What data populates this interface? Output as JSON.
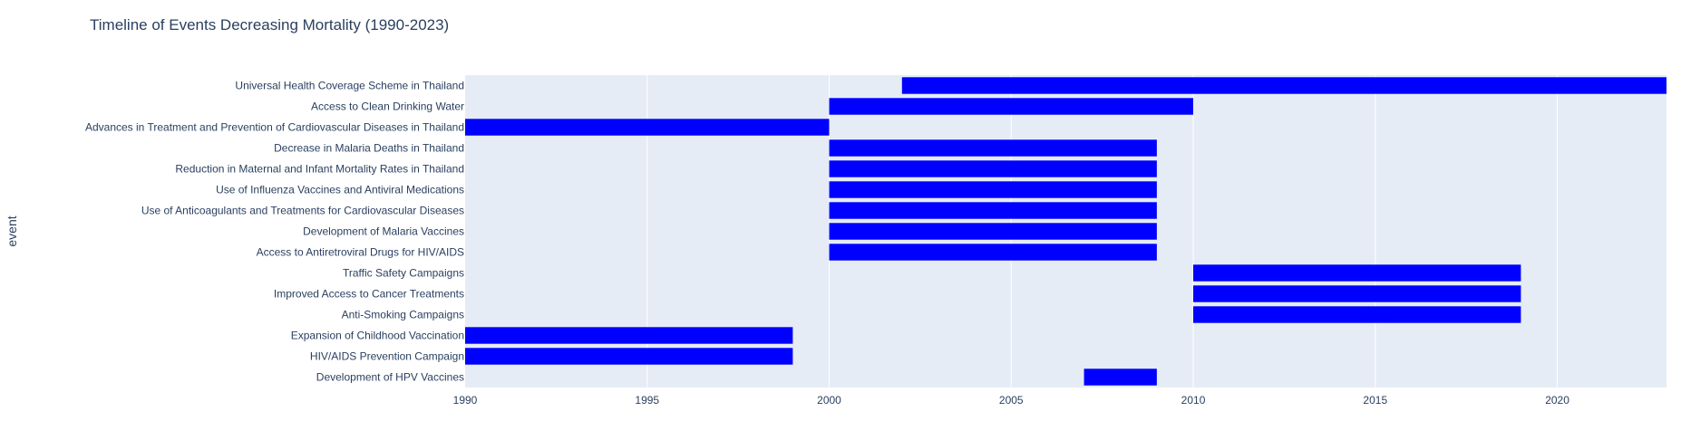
{
  "chart_data": {
    "type": "bar",
    "orientation": "horizontal-timeline",
    "title": "Timeline of Events Decreasing Mortality (1990-2023)",
    "xlabel": "",
    "ylabel": "event",
    "xlim": [
      1990,
      2023
    ],
    "xticks": [
      1990,
      1995,
      2000,
      2005,
      2010,
      2015,
      2020
    ],
    "grid": true,
    "bar_color": "#0000ff",
    "plot_background": "#e5ecf6",
    "events": [
      {
        "label": "Universal Health Coverage Scheme in Thailand",
        "start": 2002,
        "end": 2023
      },
      {
        "label": "Access to Clean Drinking Water",
        "start": 2000,
        "end": 2010
      },
      {
        "label": "Advances in Treatment and Prevention of Cardiovascular Diseases in Thailand",
        "start": 1990,
        "end": 2000
      },
      {
        "label": "Decrease in Malaria Deaths in Thailand",
        "start": 2000,
        "end": 2009
      },
      {
        "label": "Reduction in Maternal and Infant Mortality Rates in Thailand",
        "start": 2000,
        "end": 2009
      },
      {
        "label": "Use of Influenza Vaccines and Antiviral Medications",
        "start": 2000,
        "end": 2009
      },
      {
        "label": "Use of Anticoagulants and Treatments for Cardiovascular Diseases",
        "start": 2000,
        "end": 2009
      },
      {
        "label": "Development of Malaria Vaccines",
        "start": 2000,
        "end": 2009
      },
      {
        "label": "Access to Antiretroviral Drugs for HIV/AIDS",
        "start": 2000,
        "end": 2009
      },
      {
        "label": "Traffic Safety Campaigns",
        "start": 2010,
        "end": 2019
      },
      {
        "label": "Improved Access to Cancer Treatments",
        "start": 2010,
        "end": 2019
      },
      {
        "label": "Anti-Smoking Campaigns",
        "start": 2010,
        "end": 2019
      },
      {
        "label": "Expansion of Childhood Vaccination",
        "start": 1990,
        "end": 1999
      },
      {
        "label": "HIV/AIDS Prevention Campaign",
        "start": 1990,
        "end": 1999
      },
      {
        "label": "Development of HPV Vaccines",
        "start": 2007,
        "end": 2009
      }
    ]
  }
}
